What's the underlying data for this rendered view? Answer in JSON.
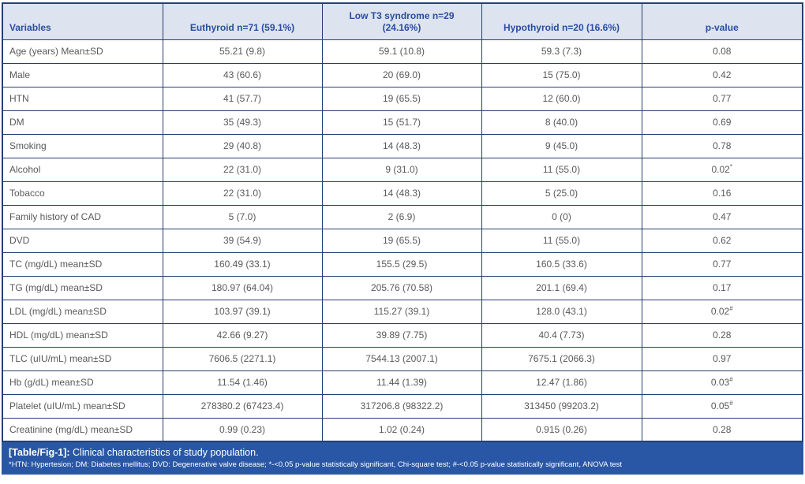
{
  "table": {
    "columns": [
      "Variables",
      "Euthyroid n=71 (59.1%)",
      "Low T3 syndrome n=29 (24.16%)",
      "Hypothyroid n=20 (16.6%)",
      "p-value"
    ],
    "rows": [
      {
        "variable": "Age (years) Mean±SD",
        "euthyroid": "55.21 (9.8)",
        "low_t3": "59.1 (10.8)",
        "hypothyroid": "59.3 (7.3)",
        "p_value": "0.08",
        "p_sup": ""
      },
      {
        "variable": "Male",
        "euthyroid": "43 (60.6)",
        "low_t3": "20 (69.0)",
        "hypothyroid": "15 (75.0)",
        "p_value": "0.42",
        "p_sup": ""
      },
      {
        "variable": "HTN",
        "euthyroid": "41 (57.7)",
        "low_t3": "19 (65.5)",
        "hypothyroid": "12 (60.0)",
        "p_value": "0.77",
        "p_sup": ""
      },
      {
        "variable": "DM",
        "euthyroid": "35 (49.3)",
        "low_t3": "15 (51.7)",
        "hypothyroid": "8 (40.0)",
        "p_value": "0.69",
        "p_sup": ""
      },
      {
        "variable": "Smoking",
        "euthyroid": "29 (40.8)",
        "low_t3": "14 (48.3)",
        "hypothyroid": "9 (45.0)",
        "p_value": "0.78",
        "p_sup": ""
      },
      {
        "variable": "Alcohol",
        "euthyroid": "22 (31.0)",
        "low_t3": "9 (31.0)",
        "hypothyroid": "11 (55.0)",
        "p_value": "0.02",
        "p_sup": "*"
      },
      {
        "variable": "Tobacco",
        "euthyroid": "22 (31.0)",
        "low_t3": "14 (48.3)",
        "hypothyroid": "5 (25.0)",
        "p_value": "0.16",
        "p_sup": ""
      },
      {
        "variable": "Family history of CAD",
        "euthyroid": "5 (7.0)",
        "low_t3": "2 (6.9)",
        "hypothyroid": "0 (0)",
        "p_value": "0.47",
        "p_sup": ""
      },
      {
        "variable": "DVD",
        "euthyroid": "39 (54.9)",
        "low_t3": "19 (65.5)",
        "hypothyroid": "11 (55.0)",
        "p_value": "0.62",
        "p_sup": ""
      },
      {
        "variable": "TC (mg/dL) mean±SD",
        "euthyroid": "160.49 (33.1)",
        "low_t3": "155.5 (29.5)",
        "hypothyroid": "160.5 (33.6)",
        "p_value": "0.77",
        "p_sup": ""
      },
      {
        "variable": "TG (mg/dL) mean±SD",
        "euthyroid": "180.97 (64.04)",
        "low_t3": "205.76 (70.58)",
        "hypothyroid": "201.1 (69.4)",
        "p_value": "0.17",
        "p_sup": ""
      },
      {
        "variable": "LDL (mg/dL) mean±SD",
        "euthyroid": "103.97 (39.1)",
        "low_t3": "115.27 (39.1)",
        "hypothyroid": "128.0 (43.1)",
        "p_value": "0.02",
        "p_sup": "#"
      },
      {
        "variable": "HDL (mg/dL) mean±SD",
        "euthyroid": "42.66 (9.27)",
        "low_t3": "39.89 (7.75)",
        "hypothyroid": "40.4 (7.73)",
        "p_value": "0.28",
        "p_sup": ""
      },
      {
        "variable": "TLC (uIU/mL) mean±SD",
        "euthyroid": "7606.5 (2271.1)",
        "low_t3": "7544.13 (2007.1)",
        "hypothyroid": "7675.1 (2066.3)",
        "p_value": "0.97",
        "p_sup": ""
      },
      {
        "variable": "Hb (g/dL) mean±SD",
        "euthyroid": "11.54 (1.46)",
        "low_t3": "11.44 (1.39)",
        "hypothyroid": "12.47 (1.86)",
        "p_value": "0.03",
        "p_sup": "#"
      },
      {
        "variable": "Platelet (uIU/mL) mean±SD",
        "euthyroid": "278380.2 (67423.4)",
        "low_t3": "317206.8 (98322.2)",
        "hypothyroid": "313450 (99203.2)",
        "p_value": "0.05",
        "p_sup": "#"
      },
      {
        "variable": "Creatinine (mg/dL) mean±SD",
        "euthyroid": "0.99 (0.23)",
        "low_t3": "1.02 (0.24)",
        "hypothyroid": "0.915 (0.26)",
        "p_value": "0.28",
        "p_sup": ""
      }
    ]
  },
  "caption": {
    "label": "[Table/Fig-1]:",
    "text": "Clinical characteristics of study population."
  },
  "footnote": "*HTN: Hypertesion; DM: Diabetes mellitus; DVD: Degenerative valve disease; *-<0.05 p-value statistically significant, Chi-square test; #-<0.05 p-value statistically significant, ANOVA test",
  "colors": {
    "border": "#24406e",
    "header_bg": "#dde3ef",
    "header_text": "#2a4da0",
    "body_text": "#58595b",
    "caption_bg": "#2a57a5",
    "caption_text": "#ffffff"
  }
}
